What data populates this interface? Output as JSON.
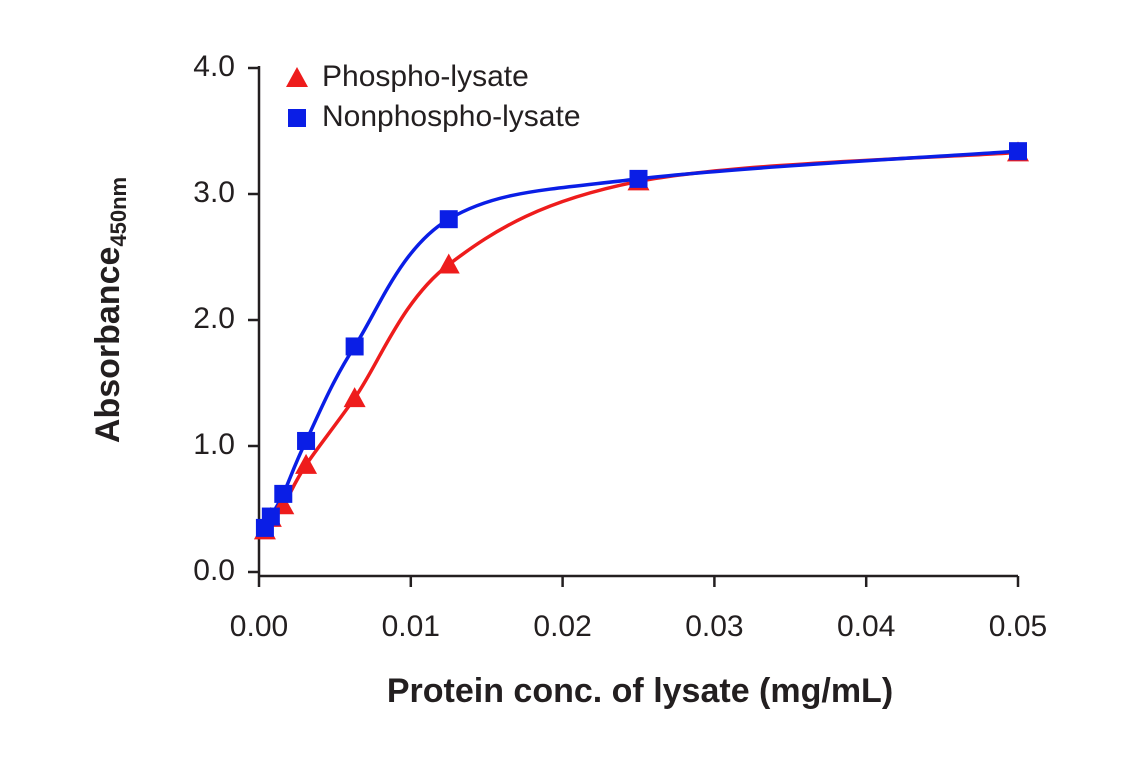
{
  "chart_data": {
    "type": "scatter",
    "x_label": "Protein conc. of lysate (mg/mL)",
    "y_label": "Absorbance",
    "y_label_subscript": "450nm",
    "series": [
      {
        "name": "Phospho-lysate",
        "color": "#ee1c1c",
        "marker": "triangle",
        "x": [
          0.00039,
          0.00078,
          0.0016,
          0.0031,
          0.0063,
          0.0125,
          0.025,
          0.05
        ],
        "values": [
          0.33,
          0.43,
          0.53,
          0.85,
          1.38,
          2.44,
          3.1,
          3.33
        ]
      },
      {
        "name": "Nonphospho-lysate",
        "color": "#0a1ee6",
        "marker": "square",
        "x": [
          0.00039,
          0.00078,
          0.0016,
          0.0031,
          0.0063,
          0.0125,
          0.025,
          0.05
        ],
        "values": [
          0.35,
          0.44,
          0.62,
          1.04,
          1.79,
          2.8,
          3.12,
          3.34
        ]
      }
    ],
    "xlim": [
      0,
      0.05
    ],
    "xticks": [
      {
        "value": 0,
        "label": "0.00"
      },
      {
        "value": 0.01,
        "label": "0.01"
      },
      {
        "value": 0.02,
        "label": "0.02"
      },
      {
        "value": 0.03,
        "label": "0.03"
      },
      {
        "value": 0.04,
        "label": "0.04"
      },
      {
        "value": 0.05,
        "label": "0.05"
      }
    ],
    "ylim": [
      0,
      4
    ],
    "yticks": [
      {
        "value": 0,
        "label": "0.0"
      },
      {
        "value": 1,
        "label": "1.0"
      },
      {
        "value": 2,
        "label": "2.0"
      },
      {
        "value": 3,
        "label": "3.0"
      },
      {
        "value": 4,
        "label": "4.0"
      }
    ],
    "grid": false,
    "legend": "top-left"
  }
}
